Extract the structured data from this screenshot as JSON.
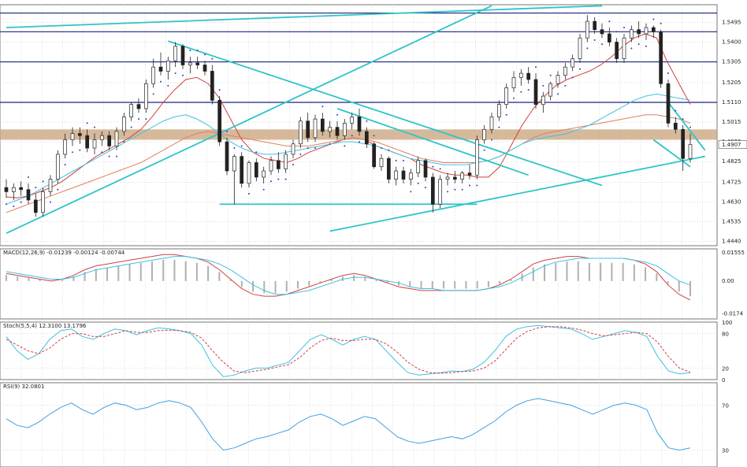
{
  "chart_data": [
    {
      "type": "candlestick",
      "panel": "price",
      "y_axis_ticks": [
        "1.5495",
        "1.5400",
        "1.5305",
        "1.5205",
        "1.5110",
        "1.5015",
        "1.4920",
        "1.4825",
        "1.4725",
        "1.4630",
        "1.4535",
        "1.4440"
      ],
      "current_price_label": "1.4907",
      "ylim": [
        1.442,
        1.558
      ],
      "horizontal_levels": [
        1.554,
        1.545,
        1.5305,
        1.511
      ],
      "support_band": [
        1.493,
        1.498
      ],
      "candles": [
        [
          1.47,
          1.474,
          1.465,
          1.468
        ],
        [
          1.468,
          1.472,
          1.464,
          1.47
        ],
        [
          1.47,
          1.473,
          1.466,
          1.469
        ],
        [
          1.469,
          1.472,
          1.462,
          1.464
        ],
        [
          1.464,
          1.467,
          1.456,
          1.458
        ],
        [
          1.458,
          1.47,
          1.456,
          1.468
        ],
        [
          1.468,
          1.476,
          1.466,
          1.474
        ],
        [
          1.474,
          1.488,
          1.472,
          1.486
        ],
        [
          1.486,
          1.496,
          1.484,
          1.493
        ],
        [
          1.493,
          1.499,
          1.49,
          1.496
        ],
        [
          1.496,
          1.499,
          1.491,
          1.495
        ],
        [
          1.495,
          1.498,
          1.487,
          1.489
        ],
        [
          1.489,
          1.496,
          1.486,
          1.493
        ],
        [
          1.493,
          1.497,
          1.49,
          1.495
        ],
        [
          1.495,
          1.497,
          1.488,
          1.49
        ],
        [
          1.49,
          1.499,
          1.488,
          1.497
        ],
        [
          1.497,
          1.506,
          1.495,
          1.504
        ],
        [
          1.504,
          1.511,
          1.502,
          1.51
        ],
        [
          1.51,
          1.513,
          1.506,
          1.508
        ],
        [
          1.508,
          1.522,
          1.506,
          1.52
        ],
        [
          1.52,
          1.532,
          1.518,
          1.528
        ],
        [
          1.528,
          1.535,
          1.524,
          1.526
        ],
        [
          1.526,
          1.533,
          1.522,
          1.531
        ],
        [
          1.531,
          1.54,
          1.528,
          1.538
        ],
        [
          1.538,
          1.539,
          1.527,
          1.529
        ],
        [
          1.529,
          1.533,
          1.525,
          1.53
        ],
        [
          1.53,
          1.533,
          1.527,
          1.529
        ],
        [
          1.529,
          1.531,
          1.524,
          1.526
        ],
        [
          1.526,
          1.529,
          1.51,
          1.512
        ],
        [
          1.512,
          1.514,
          1.49,
          1.492
        ],
        [
          1.492,
          1.494,
          1.476,
          1.478
        ],
        [
          1.478,
          1.486,
          1.462,
          1.485
        ],
        [
          1.485,
          1.487,
          1.47,
          1.472
        ],
        [
          1.472,
          1.483,
          1.47,
          1.482
        ],
        [
          1.482,
          1.484,
          1.473,
          1.475
        ],
        [
          1.475,
          1.48,
          1.472,
          1.478
        ],
        [
          1.478,
          1.485,
          1.476,
          1.483
        ],
        [
          1.483,
          1.487,
          1.477,
          1.479
        ],
        [
          1.479,
          1.488,
          1.477,
          1.486
        ],
        [
          1.486,
          1.493,
          1.484,
          1.491
        ],
        [
          1.491,
          1.504,
          1.489,
          1.502
        ],
        [
          1.502,
          1.506,
          1.492,
          1.494
        ],
        [
          1.494,
          1.505,
          1.492,
          1.503
        ],
        [
          1.503,
          1.506,
          1.495,
          1.497
        ],
        [
          1.497,
          1.502,
          1.494,
          1.499
        ],
        [
          1.499,
          1.502,
          1.493,
          1.495
        ],
        [
          1.495,
          1.503,
          1.493,
          1.501
        ],
        [
          1.501,
          1.506,
          1.498,
          1.504
        ],
        [
          1.504,
          1.508,
          1.495,
          1.497
        ],
        [
          1.497,
          1.499,
          1.489,
          1.491
        ],
        [
          1.491,
          1.492,
          1.479,
          1.48
        ],
        [
          1.48,
          1.486,
          1.478,
          1.484
        ],
        [
          1.484,
          1.485,
          1.472,
          1.474
        ],
        [
          1.474,
          1.48,
          1.471,
          1.478
        ],
        [
          1.478,
          1.48,
          1.472,
          1.474
        ],
        [
          1.474,
          1.479,
          1.471,
          1.477
        ],
        [
          1.477,
          1.485,
          1.475,
          1.483
        ],
        [
          1.483,
          1.484,
          1.473,
          1.475
        ],
        [
          1.475,
          1.477,
          1.458,
          1.462
        ],
        [
          1.462,
          1.476,
          1.46,
          1.474
        ],
        [
          1.474,
          1.477,
          1.471,
          1.475
        ],
        [
          1.475,
          1.478,
          1.472,
          1.474
        ],
        [
          1.474,
          1.478,
          1.472,
          1.477
        ],
        [
          1.477,
          1.481,
          1.474,
          1.476
        ],
        [
          1.476,
          1.495,
          1.474,
          1.493
        ],
        [
          1.493,
          1.5,
          1.491,
          1.498
        ],
        [
          1.498,
          1.506,
          1.496,
          1.504
        ],
        [
          1.504,
          1.512,
          1.502,
          1.51
        ],
        [
          1.51,
          1.52,
          1.508,
          1.518
        ],
        [
          1.518,
          1.526,
          1.516,
          1.523
        ],
        [
          1.523,
          1.527,
          1.519,
          1.525
        ],
        [
          1.525,
          1.528,
          1.52,
          1.522
        ],
        [
          1.522,
          1.525,
          1.508,
          1.51
        ],
        [
          1.51,
          1.516,
          1.506,
          1.514
        ],
        [
          1.514,
          1.521,
          1.512,
          1.52
        ],
        [
          1.52,
          1.526,
          1.518,
          1.524
        ],
        [
          1.524,
          1.53,
          1.522,
          1.528
        ],
        [
          1.528,
          1.534,
          1.526,
          1.532
        ],
        [
          1.532,
          1.544,
          1.53,
          1.542
        ],
        [
          1.542,
          1.553,
          1.54,
          1.55
        ],
        [
          1.55,
          1.552,
          1.544,
          1.546
        ],
        [
          1.546,
          1.549,
          1.542,
          1.544
        ],
        [
          1.544,
          1.547,
          1.538,
          1.54
        ],
        [
          1.54,
          1.542,
          1.53,
          1.532
        ],
        [
          1.532,
          1.544,
          1.53,
          1.542
        ],
        [
          1.542,
          1.548,
          1.54,
          1.546
        ],
        [
          1.546,
          1.55,
          1.542,
          1.544
        ],
        [
          1.544,
          1.549,
          1.541,
          1.547
        ],
        [
          1.547,
          1.548,
          1.542,
          1.545
        ],
        [
          1.545,
          1.546,
          1.518,
          1.52
        ],
        [
          1.52,
          1.522,
          1.499,
          1.501
        ],
        [
          1.501,
          1.504,
          1.496,
          1.498
        ],
        [
          1.498,
          1.5,
          1.478,
          1.484
        ],
        [
          1.484,
          1.496,
          1.482,
          1.4907
        ]
      ],
      "moving_averages": [
        {
          "color": "#d04040",
          "points": [
            1.4655,
            1.465,
            1.466,
            1.468,
            1.47,
            1.473,
            1.477,
            1.481,
            1.485,
            1.488,
            1.491,
            1.494,
            1.498,
            1.504,
            1.511,
            1.517,
            1.522,
            1.523,
            1.52,
            1.513,
            1.503,
            1.493,
            1.487,
            1.484,
            1.483,
            1.482,
            1.484,
            1.487,
            1.489,
            1.491,
            1.493,
            1.494,
            1.493,
            1.49,
            1.488,
            1.486,
            1.484,
            1.481,
            1.479,
            1.477,
            1.476,
            1.476,
            1.475,
            1.475,
            1.48,
            1.49,
            1.5,
            1.508,
            1.514,
            1.519,
            1.522,
            1.524,
            1.526,
            1.529,
            1.533,
            1.538,
            1.542,
            1.544,
            1.542,
            1.53,
            1.52,
            1.51
          ]
        },
        {
          "color": "#e08060",
          "points": [
            1.458,
            1.46,
            1.462,
            1.464,
            1.466,
            1.468,
            1.47,
            1.472,
            1.474,
            1.476,
            1.478,
            1.48,
            1.482,
            1.485,
            1.488,
            1.491,
            1.494,
            1.496,
            1.497,
            1.496,
            1.495,
            1.494,
            1.493,
            1.492,
            1.491,
            1.49,
            1.49,
            1.49,
            1.491,
            1.492,
            1.493,
            1.494,
            1.493,
            1.492,
            1.49,
            1.488,
            1.486,
            1.484,
            1.483,
            1.482,
            1.482,
            1.482,
            1.482,
            1.483,
            1.485,
            1.488,
            1.491,
            1.494,
            1.496,
            1.497,
            1.498,
            1.499,
            1.5,
            1.501,
            1.502,
            1.503,
            1.504,
            1.505,
            1.505,
            1.504,
            1.503,
            1.501
          ]
        },
        {
          "color": "#40c0e0",
          "points": [
            1.462,
            1.464,
            1.466,
            1.469,
            1.472,
            1.475,
            1.478,
            1.481,
            1.484,
            1.487,
            1.49,
            1.493,
            1.496,
            1.499,
            1.502,
            1.504,
            1.505,
            1.503,
            1.5,
            1.496,
            1.492,
            1.489,
            1.487,
            1.486,
            1.486,
            1.487,
            1.488,
            1.489,
            1.49,
            1.491,
            1.492,
            1.492,
            1.491,
            1.49,
            1.488,
            1.486,
            1.484,
            1.483,
            1.482,
            1.481,
            1.481,
            1.481,
            1.482,
            1.483,
            1.485,
            1.488,
            1.491,
            1.493,
            1.494,
            1.495,
            1.496,
            1.498,
            1.5,
            1.503,
            1.506,
            1.509,
            1.512,
            1.514,
            1.515,
            1.514,
            1.513,
            1.512
          ]
        }
      ]
    },
    {
      "type": "line",
      "panel": "macd",
      "label": "MACD(12,26,9) -0.01239 -0.00124 -0.00744",
      "y_axis_ticks": [
        "0.01555",
        "0.00",
        "-0.0174"
      ],
      "ylim": [
        -0.02,
        0.017
      ],
      "series": [
        {
          "color": "#d04040",
          "values": [
            0.004,
            0.003,
            0.002,
            0.001,
            0.0,
            0.001,
            0.003,
            0.006,
            0.008,
            0.009,
            0.01,
            0.011,
            0.012,
            0.013,
            0.014,
            0.014,
            0.013,
            0.012,
            0.01,
            0.006,
            0.001,
            -0.004,
            -0.007,
            -0.008,
            -0.008,
            -0.007,
            -0.005,
            -0.003,
            -0.001,
            0.001,
            0.003,
            0.004,
            0.003,
            0.001,
            -0.001,
            -0.003,
            -0.004,
            -0.005,
            -0.005,
            -0.005,
            -0.005,
            -0.005,
            -0.005,
            -0.004,
            -0.002,
            0.001,
            0.005,
            0.009,
            0.011,
            0.012,
            0.013,
            0.013,
            0.012,
            0.012,
            0.012,
            0.012,
            0.011,
            0.009,
            0.005,
            -0.002,
            -0.007,
            -0.01
          ]
        },
        {
          "color": "#40c0e0",
          "values": [
            0.005,
            0.004,
            0.003,
            0.002,
            0.001,
            0.001,
            0.002,
            0.004,
            0.006,
            0.007,
            0.008,
            0.009,
            0.01,
            0.011,
            0.012,
            0.013,
            0.013,
            0.012,
            0.011,
            0.009,
            0.006,
            0.002,
            -0.002,
            -0.005,
            -0.007,
            -0.007,
            -0.006,
            -0.005,
            -0.003,
            -0.001,
            0.001,
            0.002,
            0.002,
            0.001,
            0.0,
            -0.001,
            -0.003,
            -0.004,
            -0.004,
            -0.005,
            -0.005,
            -0.005,
            -0.005,
            -0.004,
            -0.003,
            -0.001,
            0.002,
            0.005,
            0.008,
            0.01,
            0.011,
            0.012,
            0.012,
            0.012,
            0.012,
            0.012,
            0.011,
            0.01,
            0.008,
            0.004,
            0.0,
            -0.002
          ]
        }
      ]
    },
    {
      "type": "line",
      "panel": "stoch",
      "label": "Stoch(5,5,4) 12.3100 13.1796",
      "y_axis_ticks": [
        "100",
        "80",
        "20",
        "0"
      ],
      "ylim": [
        0,
        100
      ],
      "series": [
        {
          "color": "#40c0e0",
          "values": [
            75,
            50,
            35,
            45,
            70,
            85,
            88,
            75,
            70,
            80,
            88,
            85,
            78,
            85,
            90,
            88,
            85,
            80,
            60,
            25,
            5,
            8,
            15,
            20,
            20,
            25,
            30,
            50,
            70,
            78,
            70,
            60,
            70,
            75,
            70,
            50,
            30,
            12,
            8,
            10,
            12,
            15,
            14,
            18,
            30,
            50,
            75,
            88,
            92,
            94,
            92,
            90,
            88,
            80,
            70,
            75,
            80,
            85,
            82,
            75,
            40,
            15,
            10,
            12
          ]
        },
        {
          "color": "#d04040",
          "values": [
            70,
            60,
            50,
            45,
            55,
            70,
            80,
            80,
            75,
            75,
            80,
            85,
            82,
            82,
            85,
            86,
            85,
            82,
            72,
            50,
            30,
            15,
            12,
            15,
            18,
            22,
            26,
            38,
            55,
            68,
            72,
            68,
            68,
            70,
            70,
            62,
            48,
            30,
            18,
            12,
            11,
            12,
            14,
            15,
            20,
            32,
            52,
            72,
            84,
            90,
            92,
            92,
            90,
            86,
            80,
            76,
            78,
            80,
            82,
            80,
            65,
            40,
            20,
            13
          ]
        }
      ]
    },
    {
      "type": "line",
      "panel": "rsi",
      "label": "RSI(9) 32.0801",
      "y_axis_ticks": [
        "70",
        "30"
      ],
      "ylim": [
        15,
        90
      ],
      "series": [
        {
          "color": "#40a0e0",
          "values": [
            58,
            52,
            50,
            55,
            62,
            68,
            72,
            66,
            62,
            68,
            72,
            70,
            66,
            68,
            72,
            74,
            72,
            68,
            55,
            40,
            30,
            32,
            36,
            40,
            42,
            45,
            48,
            55,
            60,
            62,
            58,
            52,
            56,
            60,
            58,
            50,
            42,
            38,
            36,
            38,
            40,
            42,
            40,
            44,
            50,
            56,
            64,
            70,
            74,
            76,
            74,
            72,
            70,
            66,
            62,
            66,
            70,
            72,
            70,
            66,
            45,
            32,
            30,
            32
          ]
        }
      ]
    }
  ]
}
